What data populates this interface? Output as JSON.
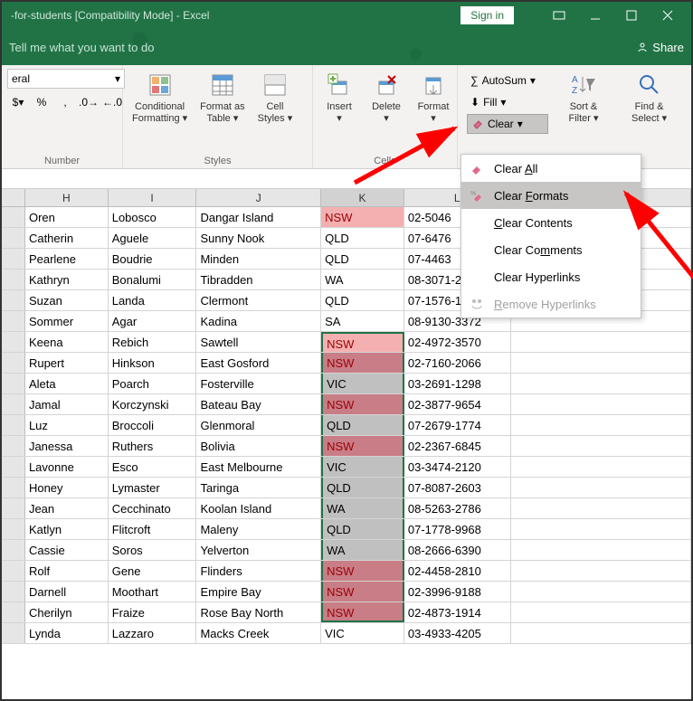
{
  "titlebar": {
    "title": "-for-students  [Compatibility Mode]  -  Excel",
    "signin": "Sign in"
  },
  "tellme": {
    "text": "Tell me what you want to do",
    "share": "Share"
  },
  "ribbon": {
    "number": {
      "label": "Number",
      "format": "eral"
    },
    "styles": {
      "label": "Styles",
      "conditional": "Conditional\nFormatting",
      "formatas": "Format as\nTable",
      "cellstyles": "Cell\nStyles"
    },
    "cells": {
      "label": "Cells",
      "insert": "Insert",
      "delete": "Delete",
      "format": "Format"
    },
    "editing": {
      "autosum": "AutoSum",
      "fill": "Fill",
      "clear": "Clear",
      "sort": "Sort &\nFilter",
      "find": "Find &\nSelect"
    }
  },
  "dropdown": {
    "items": [
      {
        "label": "Clear All",
        "accel": "A"
      },
      {
        "label": "Clear Formats",
        "accel": "F",
        "hover": true
      },
      {
        "label": "Clear Contents",
        "accel": "C"
      },
      {
        "label": "Clear Comments",
        "accel": "m"
      },
      {
        "label": "Clear Hyperlinks",
        "accel": "L"
      },
      {
        "label": "Remove Hyperlinks",
        "accel": "R",
        "disabled": true
      }
    ]
  },
  "columns": [
    "",
    "H",
    "I",
    "J",
    "K",
    "L",
    ""
  ],
  "k_colors": {
    "nsw_light": "#f4b0b0",
    "nsw_dark": "#c97d86",
    "gray": "#c0c0c0",
    "none": "#ffffff"
  },
  "rows": [
    {
      "h": "Oren",
      "i": "Lobosco",
      "j": "Dangar Island",
      "k": "NSW",
      "l": "02-5046",
      "kbg": "#f4b0b0",
      "sel": false
    },
    {
      "h": "Catherin",
      "i": "Aguele",
      "j": "Sunny Nook",
      "k": "QLD",
      "l": "07-6476",
      "kbg": "#ffffff",
      "sel": false
    },
    {
      "h": "Pearlene",
      "i": "Boudrie",
      "j": "Minden",
      "k": "QLD",
      "l": "07-4463",
      "kbg": "#ffffff",
      "sel": false
    },
    {
      "h": "Kathryn",
      "i": "Bonalumi",
      "j": "Tibradden",
      "k": "WA",
      "l": "08-3071-2258",
      "kbg": "#ffffff",
      "sel": false
    },
    {
      "h": "Suzan",
      "i": "Landa",
      "j": "Clermont",
      "k": "QLD",
      "l": "07-1576-1412",
      "kbg": "#ffffff",
      "sel": false
    },
    {
      "h": "Sommer",
      "i": "Agar",
      "j": "Kadina",
      "k": "SA",
      "l": "08-9130-3372",
      "kbg": "#ffffff",
      "sel": false
    },
    {
      "h": "Keena",
      "i": "Rebich",
      "j": "Sawtell",
      "k": "NSW",
      "l": "02-4972-3570",
      "kbg": "#f4b0b0",
      "sel": "top"
    },
    {
      "h": "Rupert",
      "i": "Hinkson",
      "j": "East Gosford",
      "k": "NSW",
      "l": "02-7160-2066",
      "kbg": "#c97d86",
      "sel": "mid"
    },
    {
      "h": "Aleta",
      "i": "Poarch",
      "j": "Fosterville",
      "k": "VIC",
      "l": "03-2691-1298",
      "kbg": "#c0c0c0",
      "sel": "mid"
    },
    {
      "h": "Jamal",
      "i": "Korczynski",
      "j": "Bateau Bay",
      "k": "NSW",
      "l": "02-3877-9654",
      "kbg": "#c97d86",
      "sel": "mid"
    },
    {
      "h": "Luz",
      "i": "Broccoli",
      "j": "Glenmoral",
      "k": "QLD",
      "l": "07-2679-1774",
      "kbg": "#c0c0c0",
      "sel": "mid"
    },
    {
      "h": "Janessa",
      "i": "Ruthers",
      "j": "Bolivia",
      "k": "NSW",
      "l": "02-2367-6845",
      "kbg": "#c97d86",
      "sel": "mid"
    },
    {
      "h": "Lavonne",
      "i": "Esco",
      "j": "East Melbourne",
      "k": "VIC",
      "l": "03-3474-2120",
      "kbg": "#c0c0c0",
      "sel": "mid"
    },
    {
      "h": "Honey",
      "i": "Lymaster",
      "j": "Taringa",
      "k": "QLD",
      "l": "07-8087-2603",
      "kbg": "#c0c0c0",
      "sel": "mid"
    },
    {
      "h": "Jean",
      "i": "Cecchinato",
      "j": "Koolan Island",
      "k": "WA",
      "l": "08-5263-2786",
      "kbg": "#c0c0c0",
      "sel": "mid"
    },
    {
      "h": "Katlyn",
      "i": "Flitcroft",
      "j": "Maleny",
      "k": "QLD",
      "l": "07-1778-9968",
      "kbg": "#c0c0c0",
      "sel": "mid"
    },
    {
      "h": "Cassie",
      "i": "Soros",
      "j": "Yelverton",
      "k": "WA",
      "l": "08-2666-6390",
      "kbg": "#c0c0c0",
      "sel": "mid"
    },
    {
      "h": "Rolf",
      "i": "Gene",
      "j": "Flinders",
      "k": "NSW",
      "l": "02-4458-2810",
      "kbg": "#c97d86",
      "sel": "mid"
    },
    {
      "h": "Darnell",
      "i": "Moothart",
      "j": "Empire Bay",
      "k": "NSW",
      "l": "02-3996-9188",
      "kbg": "#c97d86",
      "sel": "mid"
    },
    {
      "h": "Cherilyn",
      "i": "Fraize",
      "j": "Rose Bay North",
      "k": "NSW",
      "l": "02-4873-1914",
      "kbg": "#c97d86",
      "sel": "bot"
    },
    {
      "h": "Lynda",
      "i": "Lazzaro",
      "j": "Macks Creek",
      "k": "VIC",
      "l": "03-4933-4205",
      "kbg": "#ffffff",
      "sel": false
    }
  ],
  "arrows": {
    "color": "#ff0000"
  }
}
